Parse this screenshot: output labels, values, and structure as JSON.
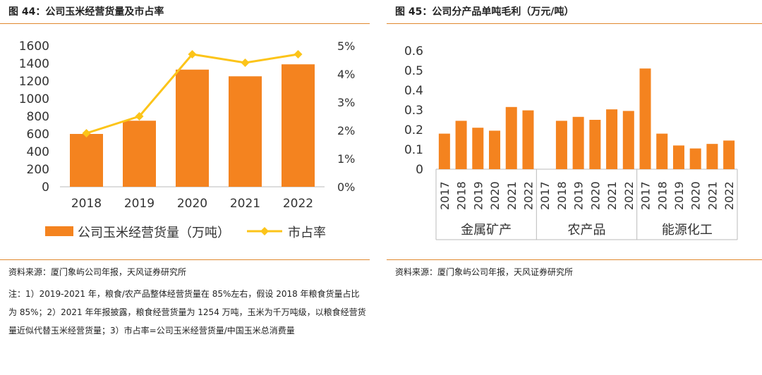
{
  "left": {
    "title": "图 44：公司玉米经营货量及市占率",
    "source": "资料来源：厦门象屿公司年报，天风证券研究所",
    "note": "注：1）2019-2021 年，粮食/农产品整体经营货量在 85%左右，假设 2018 年粮食货量占比为 85%；2）2021 年年报披露，粮食经营货量为 1254 万吨，玉米为千万吨级，以粮食经营货量近似代替玉米经营货量；3）市占率=公司玉米经营货量/中国玉米总消费量"
  },
  "right": {
    "title": "图 45：公司分产品单吨毛利（万元/吨）",
    "source": "资料来源：厦门象屿公司年报，天风证券研究所"
  },
  "colors": {
    "bar": "#f4831f",
    "line": "#fcc419",
    "rule": "#e0892f"
  },
  "chart_data": [
    {
      "type": "bar",
      "categories": [
        "2018",
        "2019",
        "2020",
        "2021",
        "2022"
      ],
      "series": [
        {
          "name": "公司玉米经营货量（万吨）",
          "type": "bar",
          "axis": "left",
          "values": [
            600,
            750,
            1330,
            1254,
            1390
          ]
        },
        {
          "name": "市占率",
          "type": "line",
          "axis": "right",
          "values": [
            1.9,
            2.5,
            4.7,
            4.4,
            4.7
          ]
        }
      ],
      "ylim": [
        0,
        1600
      ],
      "yticks": [
        "0",
        "200",
        "400",
        "600",
        "800",
        "1000",
        "1200",
        "1400",
        "1600"
      ],
      "y2lim": [
        0,
        5
      ],
      "y2ticks": [
        "0%",
        "1%",
        "2%",
        "3%",
        "4%",
        "5%"
      ],
      "legend": "bottom",
      "grid": false
    },
    {
      "type": "bar",
      "groups": [
        {
          "name": "金属矿产",
          "x": [
            "2017",
            "2018",
            "2019",
            "2020",
            "2021",
            "2022"
          ],
          "values": [
            0.18,
            0.245,
            0.21,
            0.195,
            0.315,
            0.298
          ]
        },
        {
          "name": "农产品",
          "x": [
            "2017",
            "2018",
            "2019",
            "2020",
            "2021",
            "2022"
          ],
          "values": [
            null,
            0.245,
            0.265,
            0.25,
            0.303,
            0.295
          ]
        },
        {
          "name": "能源化工",
          "x": [
            "2017",
            "2018",
            "2019",
            "2020",
            "2021",
            "2022"
          ],
          "values": [
            0.51,
            0.18,
            0.12,
            0.105,
            0.128,
            0.145
          ]
        }
      ],
      "ylim": [
        0,
        0.6
      ],
      "yticks": [
        "0",
        "0.1",
        "0.2",
        "0.3",
        "0.4",
        "0.5",
        "0.6"
      ],
      "legend": "none",
      "grid": false
    }
  ]
}
